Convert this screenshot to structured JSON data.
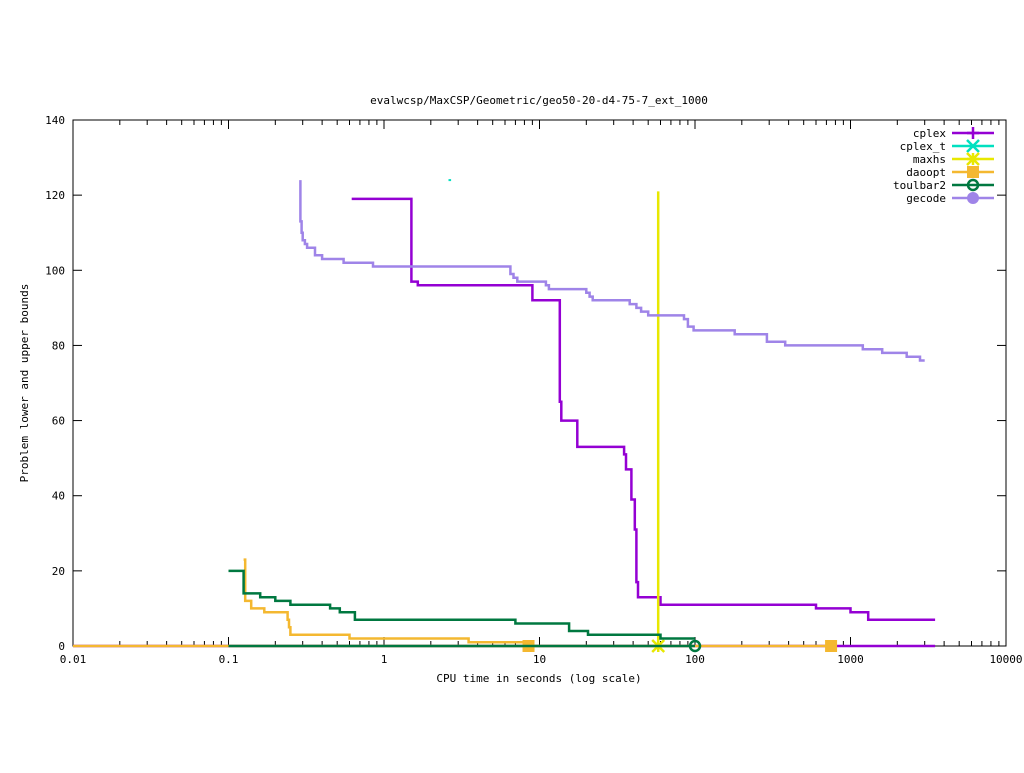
{
  "chart_data": {
    "type": "line",
    "title": "evalwcsp/MaxCSP/Geometric/geo50-20-d4-75-7_ext_1000",
    "xlabel": "CPU time in seconds (log scale)",
    "ylabel": "Problem lower and upper bounds",
    "xscale": "log",
    "xlim": [
      0.01,
      10000
    ],
    "ylim": [
      0,
      140
    ],
    "xticks": [
      {
        "value": 0.01,
        "label": "0.01"
      },
      {
        "value": 0.1,
        "label": "0.1"
      },
      {
        "value": 1,
        "label": "1"
      },
      {
        "value": 10,
        "label": "10"
      },
      {
        "value": 100,
        "label": "100"
      },
      {
        "value": 1000,
        "label": "1000"
      },
      {
        "value": 10000,
        "label": "10000"
      }
    ],
    "yticks": [
      {
        "value": 0,
        "label": "0"
      },
      {
        "value": 20,
        "label": "20"
      },
      {
        "value": 40,
        "label": "40"
      },
      {
        "value": 60,
        "label": "60"
      },
      {
        "value": 80,
        "label": "80"
      },
      {
        "value": 100,
        "label": "100"
      },
      {
        "value": 120,
        "label": "120"
      },
      {
        "value": 140,
        "label": "140"
      }
    ],
    "legend_position": "top-right",
    "series": [
      {
        "name": "cplex",
        "color": "#9400d3",
        "marker": "plus",
        "points": [
          [
            0.62,
            119
          ],
          [
            1.5,
            119
          ],
          [
            1.5,
            97
          ],
          [
            1.65,
            97
          ],
          [
            1.65,
            96
          ],
          [
            9.0,
            96
          ],
          [
            9.0,
            92
          ],
          [
            13.5,
            92
          ],
          [
            13.5,
            65
          ],
          [
            13.8,
            65
          ],
          [
            13.8,
            60
          ],
          [
            17.5,
            60
          ],
          [
            17.5,
            53
          ],
          [
            35,
            53
          ],
          [
            35,
            51
          ],
          [
            36,
            51
          ],
          [
            36,
            47
          ],
          [
            39,
            47
          ],
          [
            39,
            39
          ],
          [
            41,
            39
          ],
          [
            41,
            31
          ],
          [
            42,
            31
          ],
          [
            42,
            17
          ],
          [
            43,
            17
          ],
          [
            43,
            13
          ],
          [
            60,
            13
          ],
          [
            60,
            11
          ],
          [
            600,
            11
          ],
          [
            600,
            10
          ],
          [
            1000,
            10
          ],
          [
            1000,
            9
          ],
          [
            1300,
            9
          ],
          [
            1300,
            7
          ],
          [
            3500,
            7
          ]
        ],
        "lower_bound": [
          [
            0.01,
            0
          ],
          [
            3500,
            0
          ]
        ],
        "markers": []
      },
      {
        "name": "cplex_t",
        "color": "#00e0c0",
        "marker": "cross",
        "points": [
          [
            2.6,
            124
          ],
          [
            2.7,
            124
          ]
        ],
        "markers": []
      },
      {
        "name": "maxhs",
        "color": "#e8e800",
        "marker": "star",
        "points": [
          [
            58,
            121
          ],
          [
            58,
            0
          ]
        ],
        "markers": [
          [
            58,
            0
          ]
        ]
      },
      {
        "name": "daoopt",
        "color": "#f4b830",
        "marker": "square",
        "points": [
          [
            0.125,
            23
          ],
          [
            0.128,
            23
          ],
          [
            0.128,
            12
          ],
          [
            0.14,
            12
          ],
          [
            0.14,
            10
          ],
          [
            0.17,
            10
          ],
          [
            0.17,
            9
          ],
          [
            0.24,
            9
          ],
          [
            0.24,
            7
          ],
          [
            0.245,
            7
          ],
          [
            0.245,
            5
          ],
          [
            0.25,
            5
          ],
          [
            0.25,
            3
          ],
          [
            0.6,
            3
          ],
          [
            0.6,
            2
          ],
          [
            3.5,
            2
          ],
          [
            3.5,
            1
          ],
          [
            8.5,
            1
          ]
        ],
        "lower_bound": [
          [
            0.01,
            0
          ],
          [
            750,
            0
          ]
        ],
        "markers": [
          [
            8.5,
            0
          ],
          [
            750,
            0
          ]
        ]
      },
      {
        "name": "toulbar2",
        "color": "#007840",
        "marker": "circle",
        "points": [
          [
            0.1,
            20
          ],
          [
            0.125,
            20
          ],
          [
            0.125,
            14
          ],
          [
            0.16,
            14
          ],
          [
            0.16,
            13
          ],
          [
            0.2,
            13
          ],
          [
            0.2,
            12
          ],
          [
            0.25,
            12
          ],
          [
            0.25,
            11
          ],
          [
            0.45,
            11
          ],
          [
            0.45,
            10
          ],
          [
            0.52,
            10
          ],
          [
            0.52,
            9
          ],
          [
            0.65,
            9
          ],
          [
            0.65,
            7
          ],
          [
            7,
            7
          ],
          [
            7,
            6
          ],
          [
            15.5,
            6
          ],
          [
            15.5,
            4
          ],
          [
            20.5,
            4
          ],
          [
            20.5,
            3
          ],
          [
            60,
            3
          ],
          [
            60,
            2
          ],
          [
            100,
            2
          ]
        ],
        "lower_bound": [
          [
            0.1,
            0
          ],
          [
            100,
            0
          ]
        ],
        "markers": [
          [
            100,
            0
          ]
        ]
      },
      {
        "name": "gecode",
        "color": "#9f84e8",
        "marker": "filled-circle",
        "points": [
          [
            0.29,
            124
          ],
          [
            0.29,
            113
          ],
          [
            0.295,
            113
          ],
          [
            0.295,
            110
          ],
          [
            0.3,
            110
          ],
          [
            0.3,
            108
          ],
          [
            0.31,
            108
          ],
          [
            0.31,
            107
          ],
          [
            0.32,
            107
          ],
          [
            0.32,
            106
          ],
          [
            0.36,
            106
          ],
          [
            0.36,
            104
          ],
          [
            0.4,
            104
          ],
          [
            0.4,
            103
          ],
          [
            0.55,
            103
          ],
          [
            0.55,
            102
          ],
          [
            0.85,
            102
          ],
          [
            0.85,
            101
          ],
          [
            6.5,
            101
          ],
          [
            6.5,
            99
          ],
          [
            6.8,
            99
          ],
          [
            6.8,
            98
          ],
          [
            7.2,
            98
          ],
          [
            7.2,
            97
          ],
          [
            11,
            97
          ],
          [
            11,
            96
          ],
          [
            11.5,
            96
          ],
          [
            11.5,
            95
          ],
          [
            20,
            95
          ],
          [
            20,
            94
          ],
          [
            21,
            94
          ],
          [
            21,
            93
          ],
          [
            22,
            93
          ],
          [
            22,
            92
          ],
          [
            38,
            92
          ],
          [
            38,
            91
          ],
          [
            42,
            91
          ],
          [
            42,
            90
          ],
          [
            45,
            90
          ],
          [
            45,
            89
          ],
          [
            50,
            89
          ],
          [
            50,
            88
          ],
          [
            85,
            88
          ],
          [
            85,
            87
          ],
          [
            90,
            87
          ],
          [
            90,
            85
          ],
          [
            98,
            85
          ],
          [
            98,
            84
          ],
          [
            180,
            84
          ],
          [
            180,
            83
          ],
          [
            290,
            83
          ],
          [
            290,
            81
          ],
          [
            380,
            81
          ],
          [
            380,
            80
          ],
          [
            1200,
            80
          ],
          [
            1200,
            79
          ],
          [
            1600,
            79
          ],
          [
            1600,
            78
          ],
          [
            2300,
            78
          ],
          [
            2300,
            77
          ],
          [
            2800,
            77
          ],
          [
            2800,
            76
          ],
          [
            3000,
            76
          ]
        ],
        "markers": []
      }
    ]
  }
}
